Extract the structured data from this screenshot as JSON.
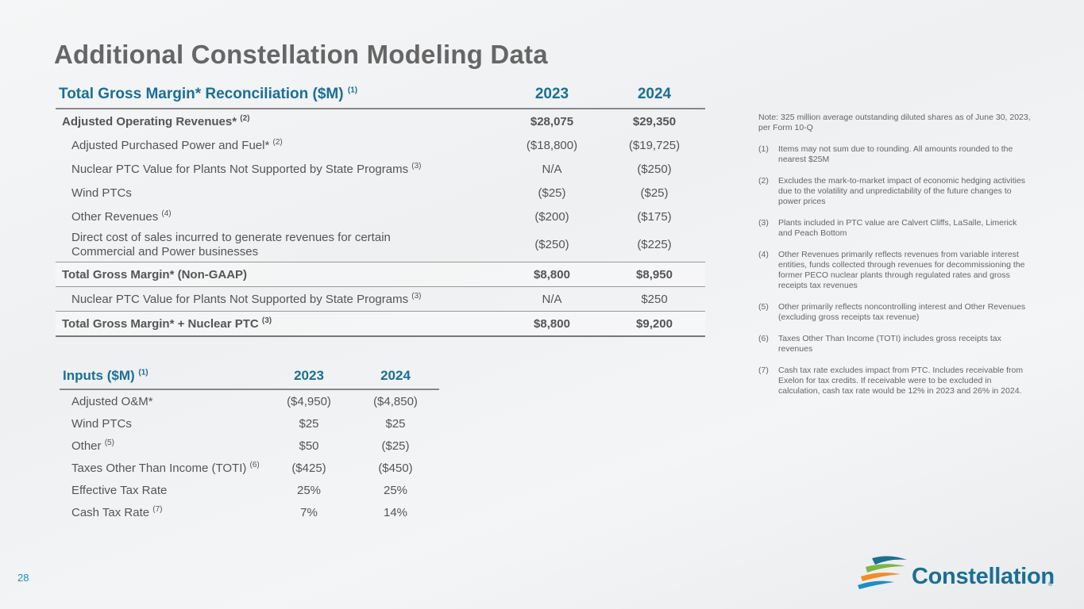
{
  "title": "Additional Constellation Modeling Data",
  "main_table": {
    "title": "Total Gross Margin* Reconciliation ($M)",
    "title_ref": "(1)",
    "col_2023": "2023",
    "col_2024": "2024",
    "rows": [
      {
        "label": "Adjusted Operating Revenues*",
        "ref": "(2)",
        "v2023": "$28,075",
        "v2024": "$29,350"
      },
      {
        "label": "Adjusted Purchased Power and Fuel*",
        "ref": "(2)",
        "v2023": "($18,800)",
        "v2024": "($19,725)"
      },
      {
        "label": "Nuclear PTC Value for Plants Not Supported by State Programs",
        "ref": "(3)",
        "v2023": "N/A",
        "v2024": "($250)"
      },
      {
        "label": "Wind PTCs",
        "ref": "",
        "v2023": "($25)",
        "v2024": "($25)"
      },
      {
        "label": "Other Revenues",
        "ref": "(4)",
        "v2023": "($200)",
        "v2024": "($175)"
      },
      {
        "label": "Direct cost of sales incurred to generate revenues for certain",
        "label2": "Commercial and Power businesses",
        "ref": "",
        "v2023": "($250)",
        "v2024": "($225)"
      },
      {
        "label": "Total Gross Margin* (Non-GAAP)",
        "ref": "",
        "v2023": "$8,800",
        "v2024": "$8,950"
      },
      {
        "label": "Nuclear PTC Value for Plants Not Supported by State Programs",
        "ref": "(3)",
        "v2023": "N/A",
        "v2024": "$250"
      },
      {
        "label": "Total Gross Margin* + Nuclear PTC",
        "ref": "(3)",
        "v2023": "$8,800",
        "v2024": "$9,200"
      }
    ]
  },
  "inputs_table": {
    "title": "Inputs ($M)",
    "title_ref": "(1)",
    "col_2023": "2023",
    "col_2024": "2024",
    "rows": [
      {
        "label": "Adjusted O&M*",
        "ref": "",
        "v2023": "($4,950)",
        "v2024": "($4,850)"
      },
      {
        "label": "Wind PTCs",
        "ref": "",
        "v2023": "$25",
        "v2024": "$25"
      },
      {
        "label": "Other",
        "ref": "(5)",
        "v2023": "$50",
        "v2024": "($25)"
      },
      {
        "label": "Taxes Other Than Income (TOTI)",
        "ref": "(6)",
        "v2023": "($425)",
        "v2024": "($450)"
      },
      {
        "label": "Effective Tax Rate",
        "ref": "",
        "v2023": "25%",
        "v2024": "25%"
      },
      {
        "label": "Cash Tax Rate",
        "ref": "(7)",
        "v2023": "7%",
        "v2024": "14%"
      }
    ]
  },
  "notes": {
    "intro": "Note: 325 million average outstanding diluted shares as of June 30, 2023, per Form 10-Q",
    "items": [
      {
        "num": "(1)",
        "text": "Items may not sum due to rounding. All amounts rounded to the nearest $25M"
      },
      {
        "num": "(2)",
        "text": "Excludes the mark-to-market impact of economic hedging activities due to the volatility and unpredictability of the future changes to power prices"
      },
      {
        "num": "(3)",
        "text": "Plants included in PTC value are Calvert Cliffs, LaSalle, Limerick and Peach Bottom"
      },
      {
        "num": "(4)",
        "text": "Other Revenues primarily reflects revenues from variable interest entities, funds collected through revenues for decommissioning the former PECO nuclear plants through regulated rates and gross receipts tax revenues"
      },
      {
        "num": "(5)",
        "text": "Other primarily reflects noncontrolling interest and Other Revenues (excluding gross receipts tax revenue)"
      },
      {
        "num": "(6)",
        "text": "Taxes Other Than Income (TOTI) includes gross receipts tax revenues"
      },
      {
        "num": "(7)",
        "text": "Cash tax rate excludes impact from PTC. Includes receivable from Exelon for tax credits. If receivable were to be excluded in calculation, cash tax rate would be 12% in 2023 and 26% in 2024."
      }
    ]
  },
  "page_number": "28",
  "logo": {
    "text": "Constellation",
    "reg": "®"
  },
  "colors": {
    "accent": "#1b6f94",
    "title": "#666666",
    "logo_green": "#7ab648",
    "logo_orange": "#f28c28"
  }
}
